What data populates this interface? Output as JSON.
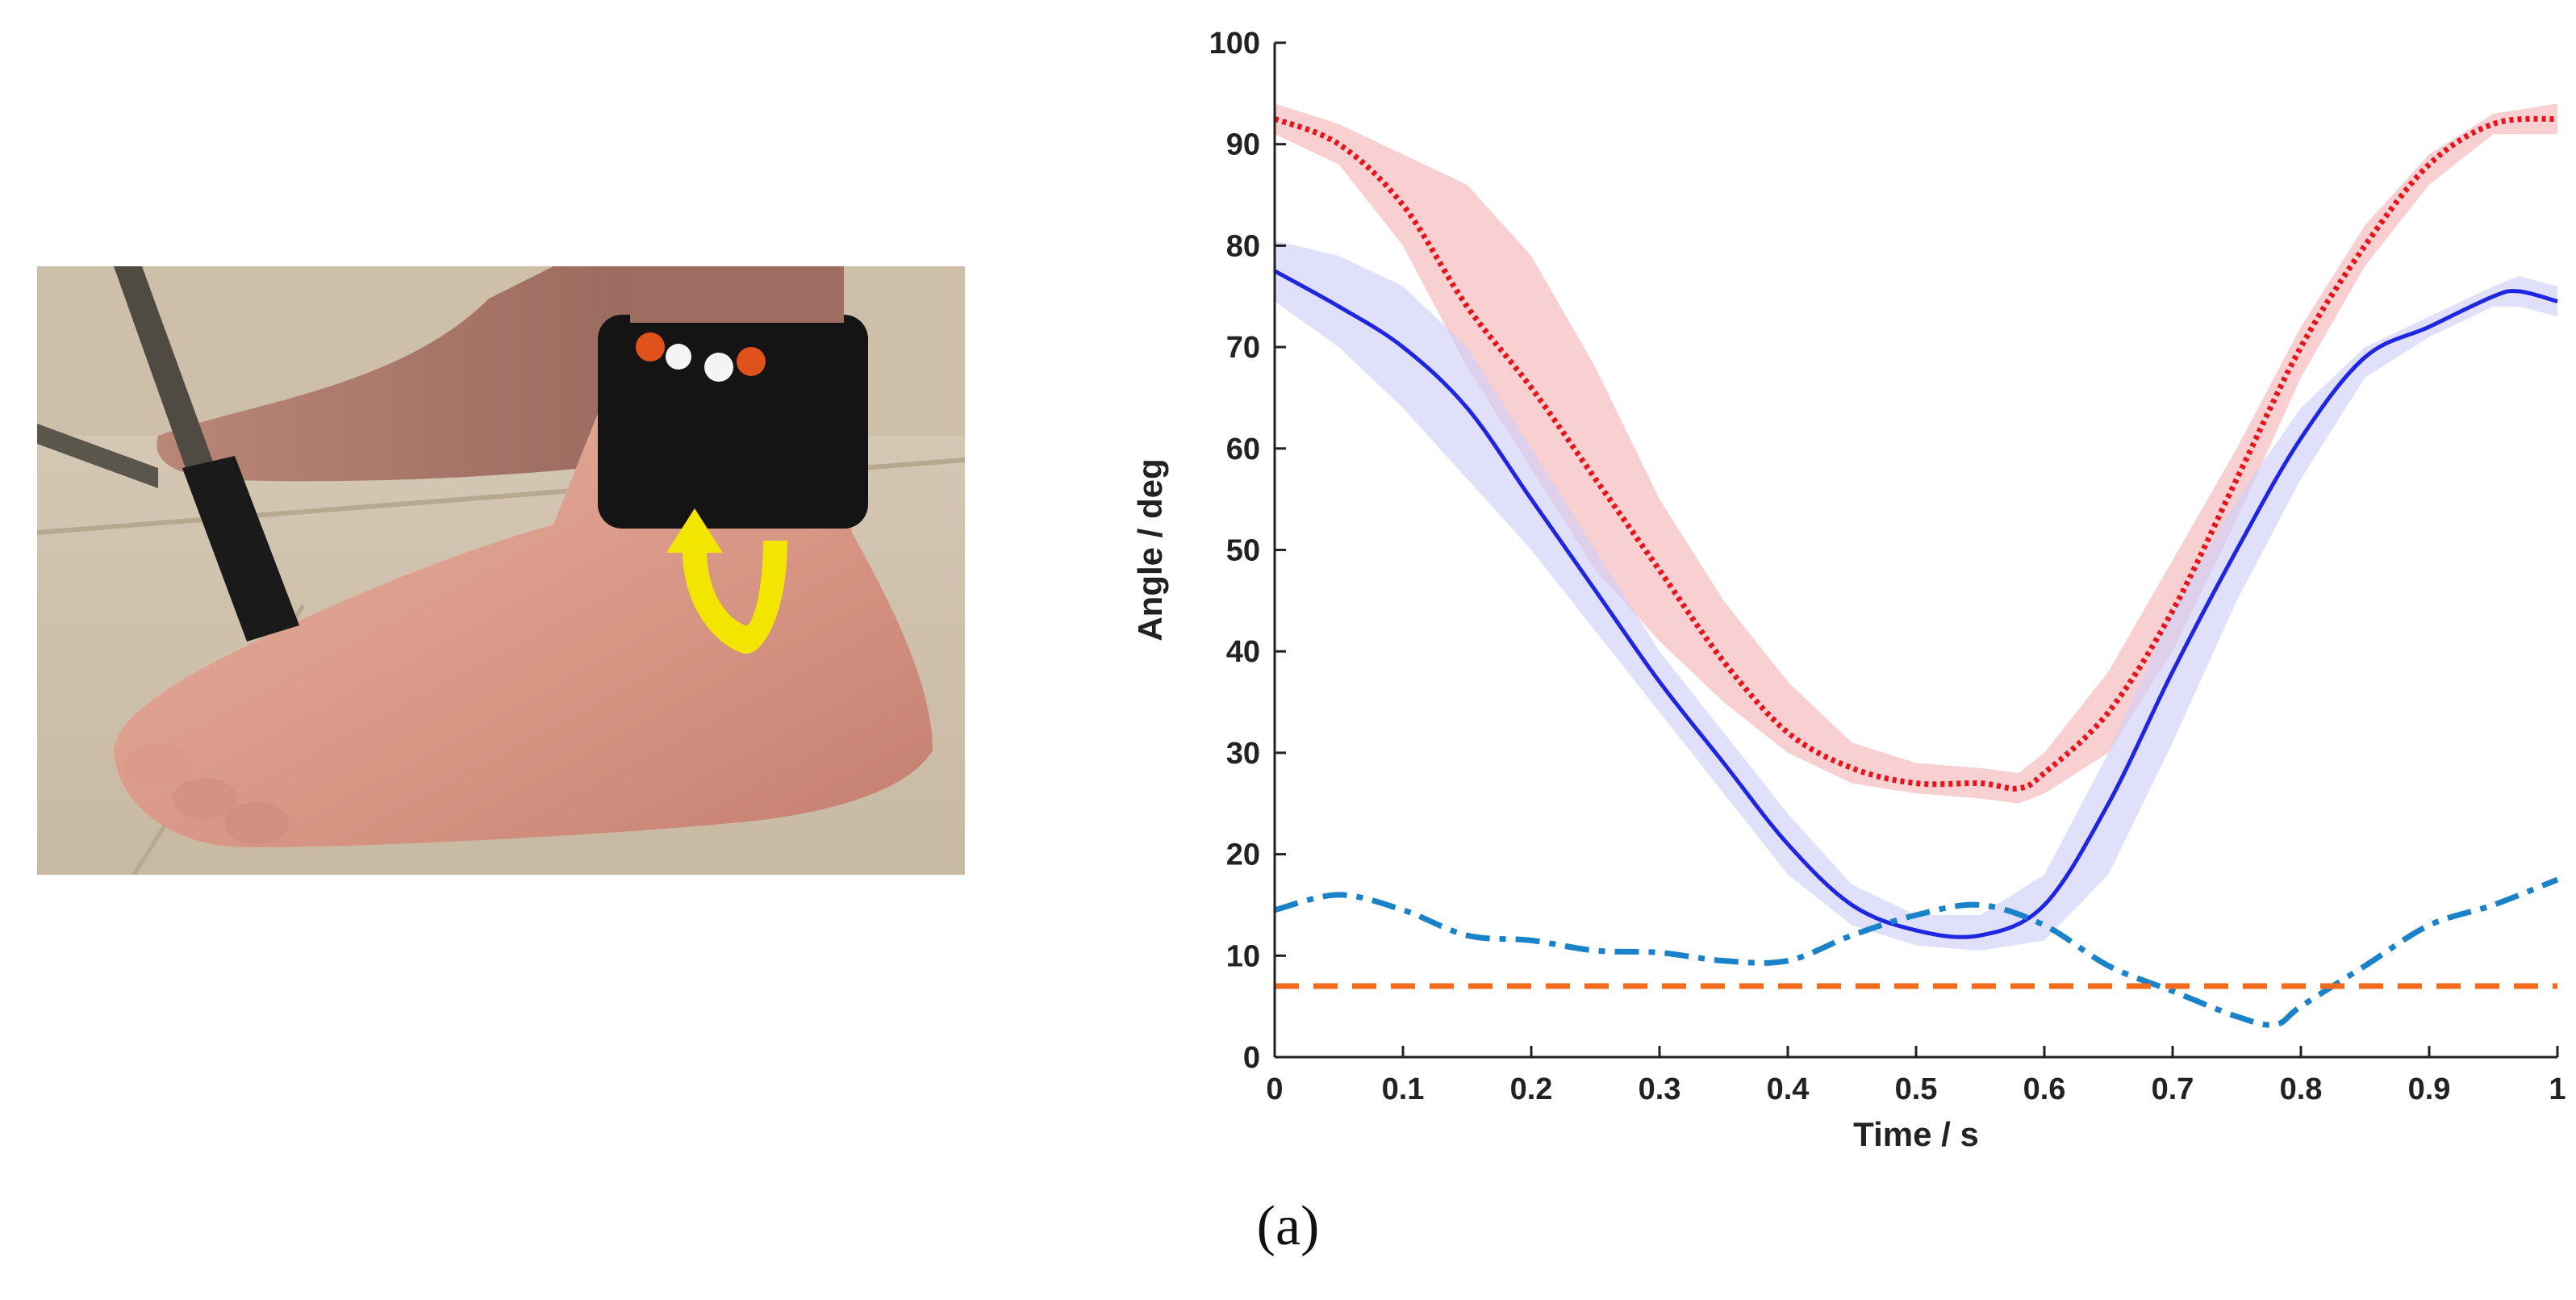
{
  "figure": {
    "caption": "(a)"
  },
  "photo": {
    "subject": "ankle-with-sensor-band",
    "arrow_color": "#f2e600"
  },
  "chart_data": {
    "type": "line",
    "title": "",
    "xlabel": "Time / s",
    "ylabel": "Angle / deg",
    "xlim": [
      0,
      1
    ],
    "ylim": [
      0,
      100
    ],
    "xticks": [
      0,
      0.1,
      0.2,
      0.3,
      0.4,
      0.5,
      0.6,
      0.7,
      0.8,
      0.9,
      1
    ],
    "xtick_labels": [
      "0",
      "0.1",
      "0.2",
      "0.3",
      "0.4",
      "0.5",
      "0.6",
      "0.7",
      "0.8",
      "0.9",
      "1"
    ],
    "yticks": [
      0,
      10,
      20,
      30,
      40,
      50,
      60,
      70,
      80,
      90,
      100
    ],
    "ytick_labels": [
      "0",
      "10",
      "20",
      "30",
      "40",
      "50",
      "60",
      "70",
      "80",
      "90",
      "100"
    ],
    "grid": false,
    "series": [
      {
        "name": "red-dotted",
        "color": "#e8141c",
        "style": "dotted",
        "band_color": "#f5b7b8",
        "x": [
          0,
          0.05,
          0.1,
          0.15,
          0.2,
          0.25,
          0.3,
          0.35,
          0.4,
          0.45,
          0.5,
          0.55,
          0.58,
          0.6,
          0.65,
          0.7,
          0.75,
          0.8,
          0.85,
          0.9,
          0.95,
          1.0
        ],
        "values": [
          92.5,
          90,
          84,
          74,
          66,
          57,
          48,
          39,
          32,
          28.5,
          27,
          27,
          26.5,
          28,
          34,
          44,
          57,
          70,
          80,
          88,
          92,
          92.5
        ],
        "upper": [
          94,
          92,
          89,
          86,
          79,
          68,
          55,
          45,
          37,
          31,
          29,
          28.5,
          28,
          30,
          38,
          49,
          60,
          72,
          82,
          89,
          93,
          94
        ],
        "lower": [
          91,
          88,
          80,
          68,
          58,
          48,
          41,
          35,
          30,
          27,
          26,
          25.5,
          25,
          26,
          30,
          40,
          53,
          67,
          78,
          86,
          91,
          91
        ]
      },
      {
        "name": "blue-solid",
        "color": "#1f26e0",
        "style": "solid",
        "band_color": "#cfcff7",
        "x": [
          0,
          0.05,
          0.1,
          0.15,
          0.2,
          0.25,
          0.3,
          0.35,
          0.4,
          0.45,
          0.5,
          0.55,
          0.6,
          0.65,
          0.7,
          0.75,
          0.8,
          0.85,
          0.9,
          0.95,
          0.97,
          1.0
        ],
        "values": [
          77.5,
          74,
          70,
          64,
          55,
          46,
          37,
          29,
          21,
          15,
          12.5,
          12,
          15,
          25,
          38,
          50,
          61,
          69,
          72,
          75,
          75.5,
          74.5
        ],
        "upper": [
          80.5,
          79,
          76,
          70,
          60,
          50,
          40,
          32,
          24,
          17,
          14,
          14,
          18,
          30,
          44,
          55,
          64,
          70,
          73,
          76,
          77,
          76
        ],
        "lower": [
          74.5,
          70,
          64,
          57,
          50,
          42,
          34,
          26,
          18,
          13,
          11,
          10.5,
          11.5,
          18,
          31,
          45,
          57,
          67,
          71,
          74,
          74,
          73
        ]
      },
      {
        "name": "cyan-dashdot",
        "color": "#1a82c8",
        "style": "dashdot",
        "x": [
          0,
          0.05,
          0.1,
          0.15,
          0.2,
          0.25,
          0.3,
          0.35,
          0.4,
          0.45,
          0.5,
          0.55,
          0.6,
          0.65,
          0.7,
          0.75,
          0.78,
          0.8,
          0.85,
          0.9,
          0.95,
          1.0
        ],
        "values": [
          14.5,
          16,
          14.5,
          12,
          11.5,
          10.5,
          10.3,
          9.5,
          9.5,
          12,
          14,
          15,
          13,
          9,
          6.5,
          4,
          3.2,
          5,
          9,
          13,
          15,
          17.5
        ]
      },
      {
        "name": "orange-dashed",
        "color": "#f26a1b",
        "style": "dashed",
        "x": [
          0,
          1
        ],
        "values": [
          7,
          7
        ]
      }
    ]
  }
}
